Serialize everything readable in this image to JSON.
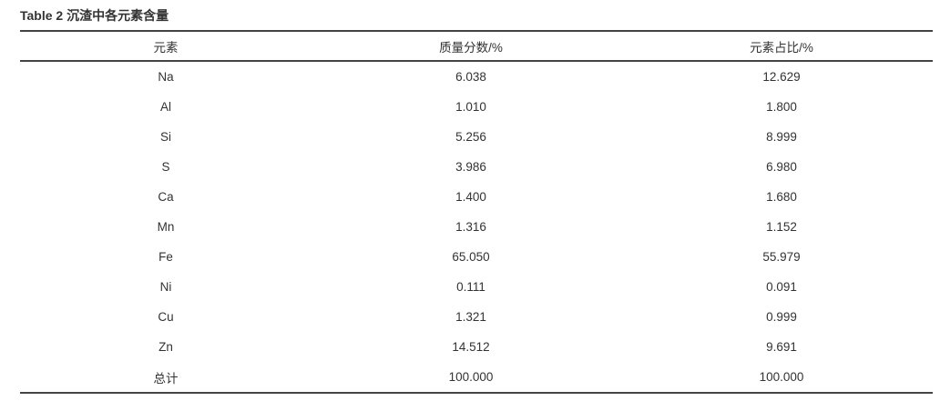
{
  "title": "Table 2  沉渣中各元素含量",
  "table": {
    "headers": [
      "元素",
      "质量分数/%",
      "元素占比/%"
    ],
    "rows": [
      [
        "Na",
        "6.038",
        "12.629"
      ],
      [
        "Al",
        "1.010",
        "1.800"
      ],
      [
        "Si",
        "5.256",
        "8.999"
      ],
      [
        "S",
        "3.986",
        "6.980"
      ],
      [
        "Ca",
        "1.400",
        "1.680"
      ],
      [
        "Mn",
        "1.316",
        "1.152"
      ],
      [
        "Fe",
        "65.050",
        "55.979"
      ],
      [
        "Ni",
        "0.111",
        "0.091"
      ],
      [
        "Cu",
        "1.321",
        "0.999"
      ],
      [
        "Zn",
        "14.512",
        "9.691"
      ],
      [
        "总计",
        "100.000",
        "100.000"
      ]
    ]
  }
}
